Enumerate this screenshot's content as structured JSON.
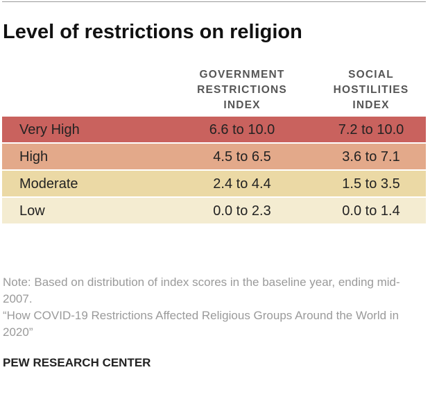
{
  "header": {
    "title": "Level of restrictions on religion"
  },
  "table": {
    "columns": [
      [
        "GOVERNMENT",
        "RESTRICTIONS",
        "INDEX"
      ],
      [
        "SOCIAL",
        "HOSTILITIES",
        "INDEX"
      ]
    ],
    "rows": [
      [
        "Very High",
        "6.6 to 10.0",
        "7.2 to 10.0"
      ],
      [
        "High",
        "4.5 to 6.5",
        "3.6 to 7.1"
      ],
      [
        "Moderate",
        "2.4 to 4.4",
        "1.5 to 3.5"
      ],
      [
        "Low",
        "0.0 to 2.3",
        "0.0 to 1.4"
      ]
    ]
  },
  "note": "Note: Based on distribution of index scores in the baseline year, ending mid-2007.",
  "source": "“How COVID-19 Restrictions Affected Religious Groups Around the World in 2020”",
  "footer": "PEW RESEARCH CENTER"
}
